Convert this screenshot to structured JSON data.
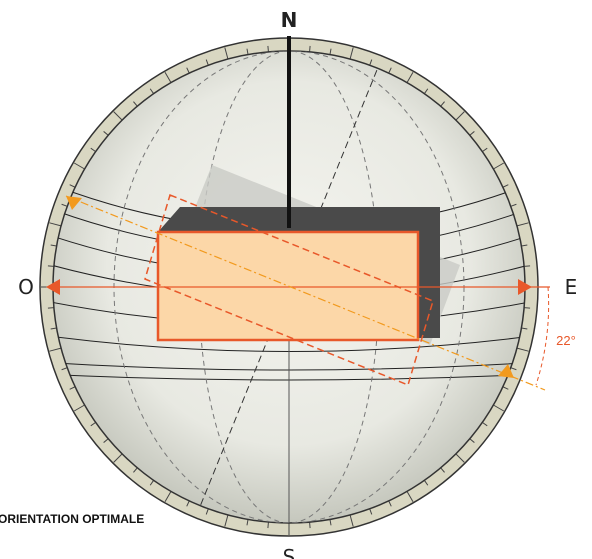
{
  "compass": {
    "north": "N",
    "west": "O",
    "east": "E",
    "south": "S"
  },
  "angle_label": "22°",
  "caption": "ORIENTATION OPTIMALE"
}
